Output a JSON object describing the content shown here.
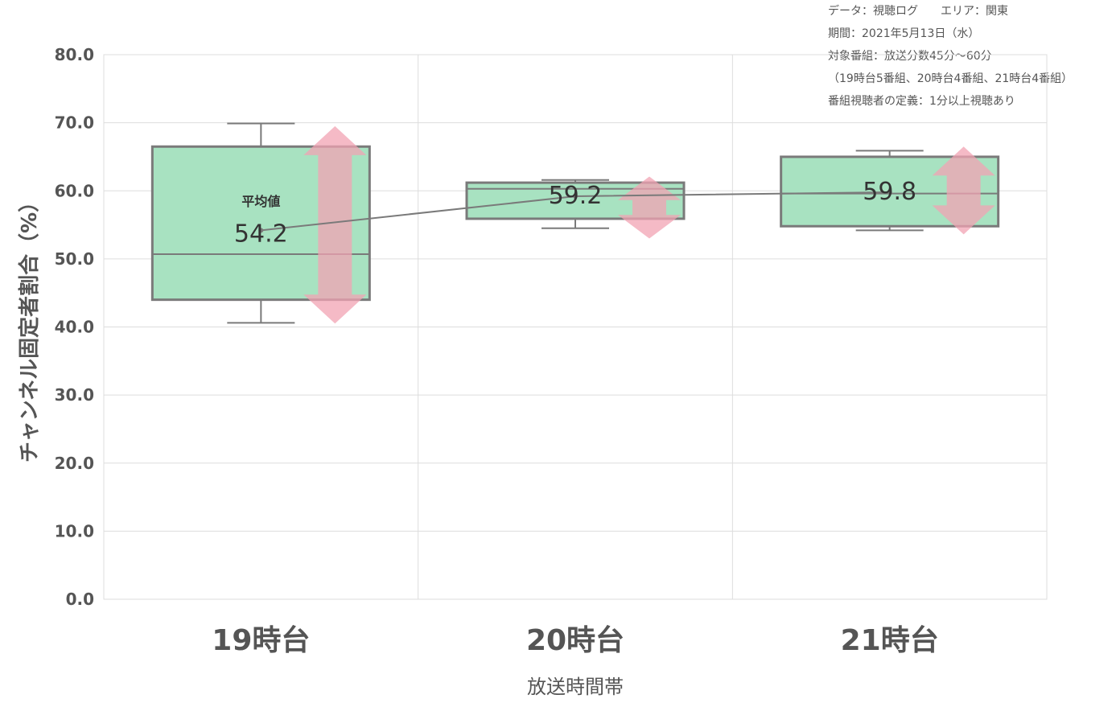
{
  "notes": [
    "データ：視聴ログ　　エリア：関東",
    "期間：2021年5月13日（水）",
    "対象番組：放送分数45分～60分",
    "（19時台5番組、20時台4番組、21時台4番組）",
    "番組視聴者の定義：1分以上視聴あり"
  ],
  "chart_data": {
    "type": "box",
    "xlabel": "放送時間帯",
    "ylabel": "チャンネル固定者割合（%）",
    "ylim": [
      0,
      80
    ],
    "yticks": [
      "0.0",
      "10.0",
      "20.0",
      "30.0",
      "40.0",
      "50.0",
      "60.0",
      "70.0",
      "80.0"
    ],
    "grid": true,
    "categories": [
      "19時台",
      "20時台",
      "21時台"
    ],
    "boxes": [
      {
        "whisker_low": 40.6,
        "q1": 44.0,
        "median": 50.7,
        "q3": 66.5,
        "whisker_high": 69.9,
        "mean": 54.2,
        "range_arrow": [
          40.5,
          69.5
        ]
      },
      {
        "whisker_low": 54.5,
        "q1": 55.9,
        "median": 60.3,
        "q3": 61.2,
        "whisker_high": 61.6,
        "mean": 59.2,
        "range_arrow": [
          53.0,
          62.1
        ]
      },
      {
        "whisker_low": 54.2,
        "q1": 54.8,
        "median": 59.6,
        "q3": 65.0,
        "whisker_high": 65.9,
        "mean": 59.8,
        "range_arrow": [
          53.6,
          66.5
        ]
      }
    ],
    "mean_label": "平均値",
    "mean_labels": [
      "54.2",
      "59.2",
      "59.8"
    ],
    "colors": {
      "box_fill": "#a8e2c1",
      "box_stroke": "#7a7a7a",
      "arrow": "#f2a3b3",
      "mean_line": "#7a7a7a",
      "grid": "#dddddd"
    }
  }
}
